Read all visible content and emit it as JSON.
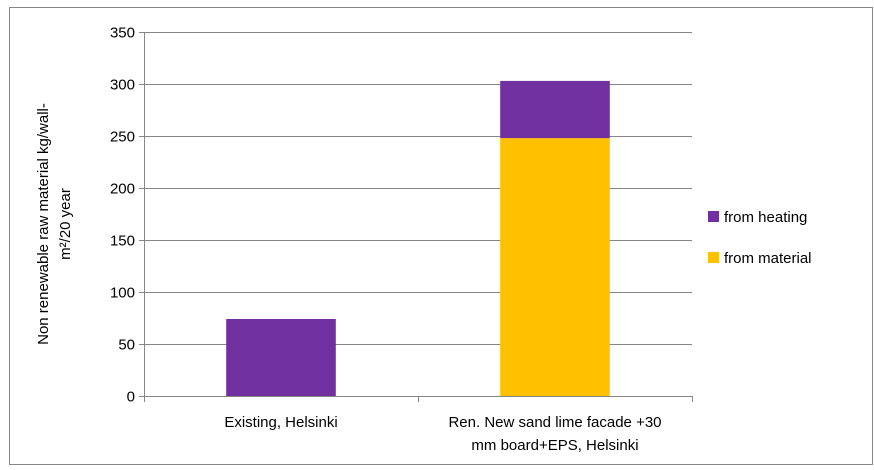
{
  "chart_data": {
    "type": "bar",
    "stacked": true,
    "categories": [
      "Existing, Helsinki",
      "Ren. New sand lime facade +30 mm board+EPS, Helsinki"
    ],
    "category_lines": [
      [
        "Existing, Helsinki"
      ],
      [
        "Ren. New sand lime facade +30",
        "mm board+EPS, Helsinki"
      ]
    ],
    "series": [
      {
        "name": "from material",
        "values": [
          0,
          248
        ],
        "color": "#FFC000"
      },
      {
        "name": "from heating",
        "values": [
          74,
          55
        ],
        "color": "#7030A0"
      }
    ],
    "legend_order": [
      "from heating",
      "from material"
    ],
    "ylabel": "Non renewable raw material kg/wall-m²/20 year",
    "ylabel_lines": [
      "Non renewable raw material kg/wall-",
      "m²/20 year"
    ],
    "ylim": [
      0,
      350
    ],
    "yticks": [
      0,
      50,
      100,
      150,
      200,
      250,
      300,
      350
    ],
    "grid": true,
    "legend_position": "right",
    "gridline_color": "#868686",
    "frame_color": "#868686"
  }
}
